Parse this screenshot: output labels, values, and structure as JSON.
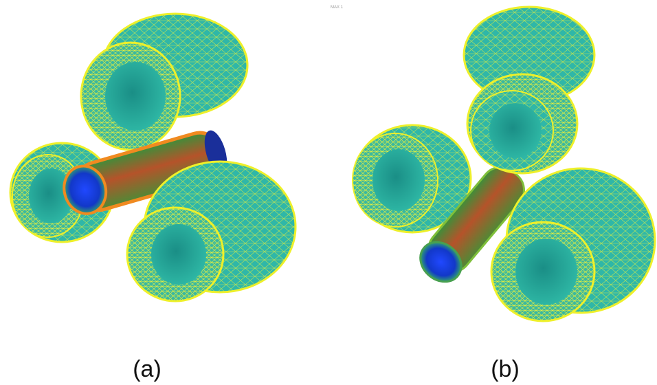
{
  "figure": {
    "top_note": "MAX 1",
    "panels": [
      {
        "label": "(a)"
      },
      {
        "label": "(b)"
      }
    ]
  }
}
